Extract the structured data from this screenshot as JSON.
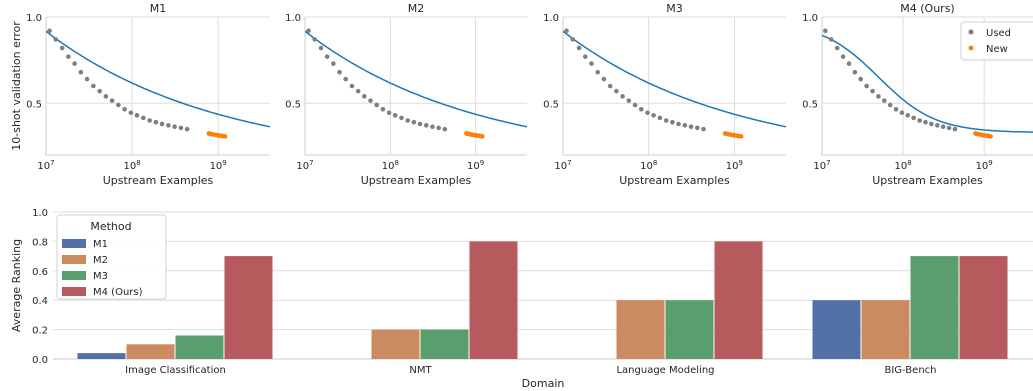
{
  "colors": {
    "used": "#7f7f7f",
    "new": "#ff7f0e",
    "fit": "#1f77b4",
    "grid": "#dddddd",
    "m1": "#5470a8",
    "m2": "#cc8a60",
    "m3": "#5a9e6e",
    "m4": "#b75a5e"
  },
  "chart_data": [
    {
      "type": "scatter",
      "title": "M1",
      "xlabel": "Upstream Examples",
      "ylabel": "10-shot validation error",
      "xscale": "log",
      "xlim": [
        10000000,
        4000000000
      ],
      "ylim": [
        0.2,
        1.0
      ],
      "xticks": [
        {
          "value": 10000000,
          "base": "10",
          "exp": "7"
        },
        {
          "value": 100000000,
          "base": "10",
          "exp": "8"
        },
        {
          "value": 1000000000,
          "base": "10",
          "exp": "9"
        }
      ],
      "yticks": [
        {
          "value": 0.5,
          "label": "0.5"
        },
        {
          "value": 1.0,
          "label": "1.0"
        }
      ],
      "grid": true,
      "fit": {
        "model": "power",
        "a": 0.16,
        "b": 0.757,
        "exponent": 0.219
      },
      "series": [
        {
          "name": "Used",
          "x": [
            11000000,
            13000000,
            15400000,
            18200000,
            21500000,
            25400000,
            30000000,
            35500000,
            42000000,
            49600000,
            58600000,
            69300000,
            81900000,
            96800000,
            114000000,
            135000000,
            160000000,
            189000000,
            223000000,
            264000000,
            312000000,
            369000000,
            436000000
          ],
          "y": [
            0.92,
            0.87,
            0.82,
            0.77,
            0.73,
            0.68,
            0.64,
            0.6,
            0.57,
            0.54,
            0.515,
            0.49,
            0.465,
            0.445,
            0.43,
            0.415,
            0.4,
            0.39,
            0.38,
            0.372,
            0.364,
            0.357,
            0.35
          ]
        },
        {
          "name": "New",
          "x": [
            780000000,
            820000000,
            860000000,
            900000000,
            950000000,
            1000000000,
            1050000000,
            1100000000,
            1150000000,
            1200000000
          ],
          "y": [
            0.325,
            0.322,
            0.32,
            0.318,
            0.316,
            0.314,
            0.312,
            0.311,
            0.309,
            0.308
          ]
        }
      ]
    },
    {
      "type": "scatter",
      "title": "M2",
      "xlabel": "Upstream Examples",
      "ylabel": "",
      "xscale": "log",
      "xlim": [
        10000000,
        4000000000
      ],
      "ylim": [
        0.2,
        1.0
      ],
      "xticks": [
        {
          "value": 10000000,
          "base": "10",
          "exp": "7"
        },
        {
          "value": 100000000,
          "base": "10",
          "exp": "8"
        },
        {
          "value": 1000000000,
          "base": "10",
          "exp": "9"
        }
      ],
      "yticks": [
        {
          "value": 0.5,
          "label": "0.5"
        },
        {
          "value": 1.0,
          "label": "1.0"
        }
      ],
      "grid": true,
      "fit": {
        "model": "power",
        "a": 0.16,
        "b": 0.757,
        "exponent": 0.219
      },
      "series": [
        {
          "name": "Used",
          "x": [
            11000000,
            13000000,
            15400000,
            18200000,
            21500000,
            25400000,
            30000000,
            35500000,
            42000000,
            49600000,
            58600000,
            69300000,
            81900000,
            96800000,
            114000000,
            135000000,
            160000000,
            189000000,
            223000000,
            264000000,
            312000000,
            369000000,
            436000000
          ],
          "y": [
            0.92,
            0.87,
            0.82,
            0.77,
            0.73,
            0.68,
            0.64,
            0.6,
            0.57,
            0.54,
            0.515,
            0.49,
            0.465,
            0.445,
            0.43,
            0.415,
            0.4,
            0.39,
            0.38,
            0.372,
            0.364,
            0.357,
            0.35
          ]
        },
        {
          "name": "New",
          "x": [
            780000000,
            820000000,
            860000000,
            900000000,
            950000000,
            1000000000,
            1050000000,
            1100000000,
            1150000000,
            1200000000
          ],
          "y": [
            0.325,
            0.322,
            0.32,
            0.318,
            0.316,
            0.314,
            0.312,
            0.311,
            0.309,
            0.308
          ]
        }
      ]
    },
    {
      "type": "scatter",
      "title": "M3",
      "xlabel": "Upstream Examples",
      "ylabel": "",
      "xscale": "log",
      "xlim": [
        10000000,
        4000000000
      ],
      "ylim": [
        0.2,
        1.0
      ],
      "xticks": [
        {
          "value": 10000000,
          "base": "10",
          "exp": "7"
        },
        {
          "value": 100000000,
          "base": "10",
          "exp": "8"
        },
        {
          "value": 1000000000,
          "base": "10",
          "exp": "9"
        }
      ],
      "yticks": [
        {
          "value": 0.5,
          "label": "0.5"
        },
        {
          "value": 1.0,
          "label": "1.0"
        }
      ],
      "grid": true,
      "fit": {
        "model": "power",
        "a": 0.16,
        "b": 0.757,
        "exponent": 0.219
      },
      "series": [
        {
          "name": "Used",
          "x": [
            11000000,
            13000000,
            15400000,
            18200000,
            21500000,
            25400000,
            30000000,
            35500000,
            42000000,
            49600000,
            58600000,
            69300000,
            81900000,
            96800000,
            114000000,
            135000000,
            160000000,
            189000000,
            223000000,
            264000000,
            312000000,
            369000000,
            436000000
          ],
          "y": [
            0.92,
            0.87,
            0.82,
            0.77,
            0.73,
            0.68,
            0.64,
            0.6,
            0.57,
            0.54,
            0.515,
            0.49,
            0.465,
            0.445,
            0.43,
            0.415,
            0.4,
            0.39,
            0.38,
            0.372,
            0.364,
            0.357,
            0.35
          ]
        },
        {
          "name": "New",
          "x": [
            780000000,
            820000000,
            860000000,
            900000000,
            950000000,
            1000000000,
            1050000000,
            1100000000,
            1150000000,
            1200000000
          ],
          "y": [
            0.325,
            0.322,
            0.32,
            0.318,
            0.316,
            0.314,
            0.312,
            0.311,
            0.309,
            0.308
          ]
        }
      ]
    },
    {
      "type": "scatter",
      "title": "M4 (Ours)",
      "xlabel": "Upstream Examples",
      "ylabel": "",
      "xscale": "log",
      "xlim": [
        10000000,
        4000000000
      ],
      "ylim": [
        0.2,
        1.0
      ],
      "xticks": [
        {
          "value": 10000000,
          "base": "10",
          "exp": "7"
        },
        {
          "value": 100000000,
          "base": "10",
          "exp": "8"
        },
        {
          "value": 1000000000,
          "base": "10",
          "exp": "9"
        }
      ],
      "yticks": [
        {
          "value": 0.5,
          "label": "0.5"
        },
        {
          "value": 1.0,
          "label": "1.0"
        }
      ],
      "grid": true,
      "legend": {
        "position": "top-right",
        "entries": [
          "Used",
          "New"
        ]
      },
      "fit": {
        "model": "sigmoid",
        "low": 0.33,
        "high": 0.97,
        "center_log10": 7.7,
        "width": 0.35
      },
      "series": [
        {
          "name": "Used",
          "x": [
            11000000,
            13000000,
            15400000,
            18200000,
            21500000,
            25400000,
            30000000,
            35500000,
            42000000,
            49600000,
            58600000,
            69300000,
            81900000,
            96800000,
            114000000,
            135000000,
            160000000,
            189000000,
            223000000,
            264000000,
            312000000,
            369000000,
            436000000
          ],
          "y": [
            0.92,
            0.87,
            0.82,
            0.77,
            0.73,
            0.68,
            0.64,
            0.6,
            0.57,
            0.54,
            0.515,
            0.49,
            0.465,
            0.445,
            0.43,
            0.415,
            0.4,
            0.39,
            0.38,
            0.372,
            0.364,
            0.357,
            0.35
          ]
        },
        {
          "name": "New",
          "x": [
            780000000,
            820000000,
            860000000,
            900000000,
            950000000,
            1000000000,
            1050000000,
            1100000000,
            1150000000,
            1200000000
          ],
          "y": [
            0.325,
            0.322,
            0.32,
            0.318,
            0.316,
            0.314,
            0.312,
            0.311,
            0.309,
            0.308
          ]
        }
      ]
    },
    {
      "type": "bar",
      "xlabel": "Domain",
      "ylabel": "Average Ranking",
      "ylim": [
        0,
        1.0
      ],
      "yticks": [
        "0.0",
        "0.2",
        "0.4",
        "0.6",
        "0.8",
        "1.0"
      ],
      "grid": true,
      "legend": {
        "title": "Method",
        "position": "top-left"
      },
      "categories": [
        "Image Classification",
        "NMT",
        "Language Modeling",
        "BIG-Bench"
      ],
      "series": [
        {
          "name": "M1",
          "values": [
            0.04,
            0.0,
            0.0,
            0.4
          ]
        },
        {
          "name": "M2",
          "values": [
            0.1,
            0.2,
            0.4,
            0.4
          ]
        },
        {
          "name": "M3",
          "values": [
            0.16,
            0.2,
            0.4,
            0.7
          ]
        },
        {
          "name": "M4 (Ours)",
          "values": [
            0.7,
            0.8,
            0.8,
            0.7
          ]
        }
      ]
    }
  ]
}
